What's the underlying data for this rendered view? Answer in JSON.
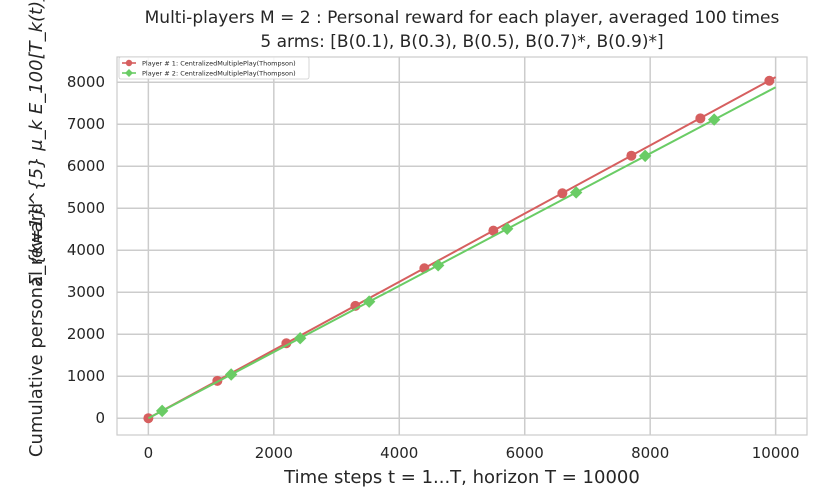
{
  "chart_data": {
    "type": "line",
    "title_line1": "Multi-players M = 2 : Personal reward for each player, averaged 100 times",
    "title_line2": "5 arms: [B(0.1), B(0.3), B(0.5), B(0.7)*, B(0.9)*]",
    "xlabel": "Time steps t = 1...T, horizon T = 10000",
    "ylabel_text": "Cumulative personal reward",
    "ylabel_math": "Σ_{k=1}^{5} μ_k E_100[T_k(t)]",
    "xlim": [
      -500,
      10500
    ],
    "ylim": [
      -400,
      8600
    ],
    "xticks": [
      0,
      2000,
      4000,
      6000,
      8000,
      10000
    ],
    "yticks": [
      0,
      1000,
      2000,
      3000,
      4000,
      5000,
      6000,
      7000,
      8000
    ],
    "grid": true,
    "legend_position": "top-left",
    "series": [
      {
        "name": "Player # 1: CentralizedMultiplePlay(Thompson)",
        "color": "#d65f5f",
        "marker": "circle",
        "line": {
          "x": [
            0,
            10000
          ],
          "y": [
            0,
            8120
          ]
        },
        "x": [
          0,
          1100,
          2200,
          3300,
          4400,
          5500,
          6600,
          7700,
          8800,
          9900
        ],
        "values": [
          0,
          890,
          1785,
          2675,
          3570,
          4465,
          5355,
          6250,
          7140,
          8035
        ]
      },
      {
        "name": "Player # 2: CentralizedMultiplePlay(Thompson)",
        "color": "#6acc65",
        "marker": "diamond",
        "line": {
          "x": [
            0,
            10000
          ],
          "y": [
            0,
            7880
          ]
        },
        "x": [
          220,
          1320,
          2420,
          3520,
          4620,
          5720,
          6820,
          7920,
          9020
        ],
        "values": [
          175,
          1040,
          1905,
          2775,
          3640,
          4510,
          5375,
          6245,
          7110
        ]
      }
    ]
  }
}
